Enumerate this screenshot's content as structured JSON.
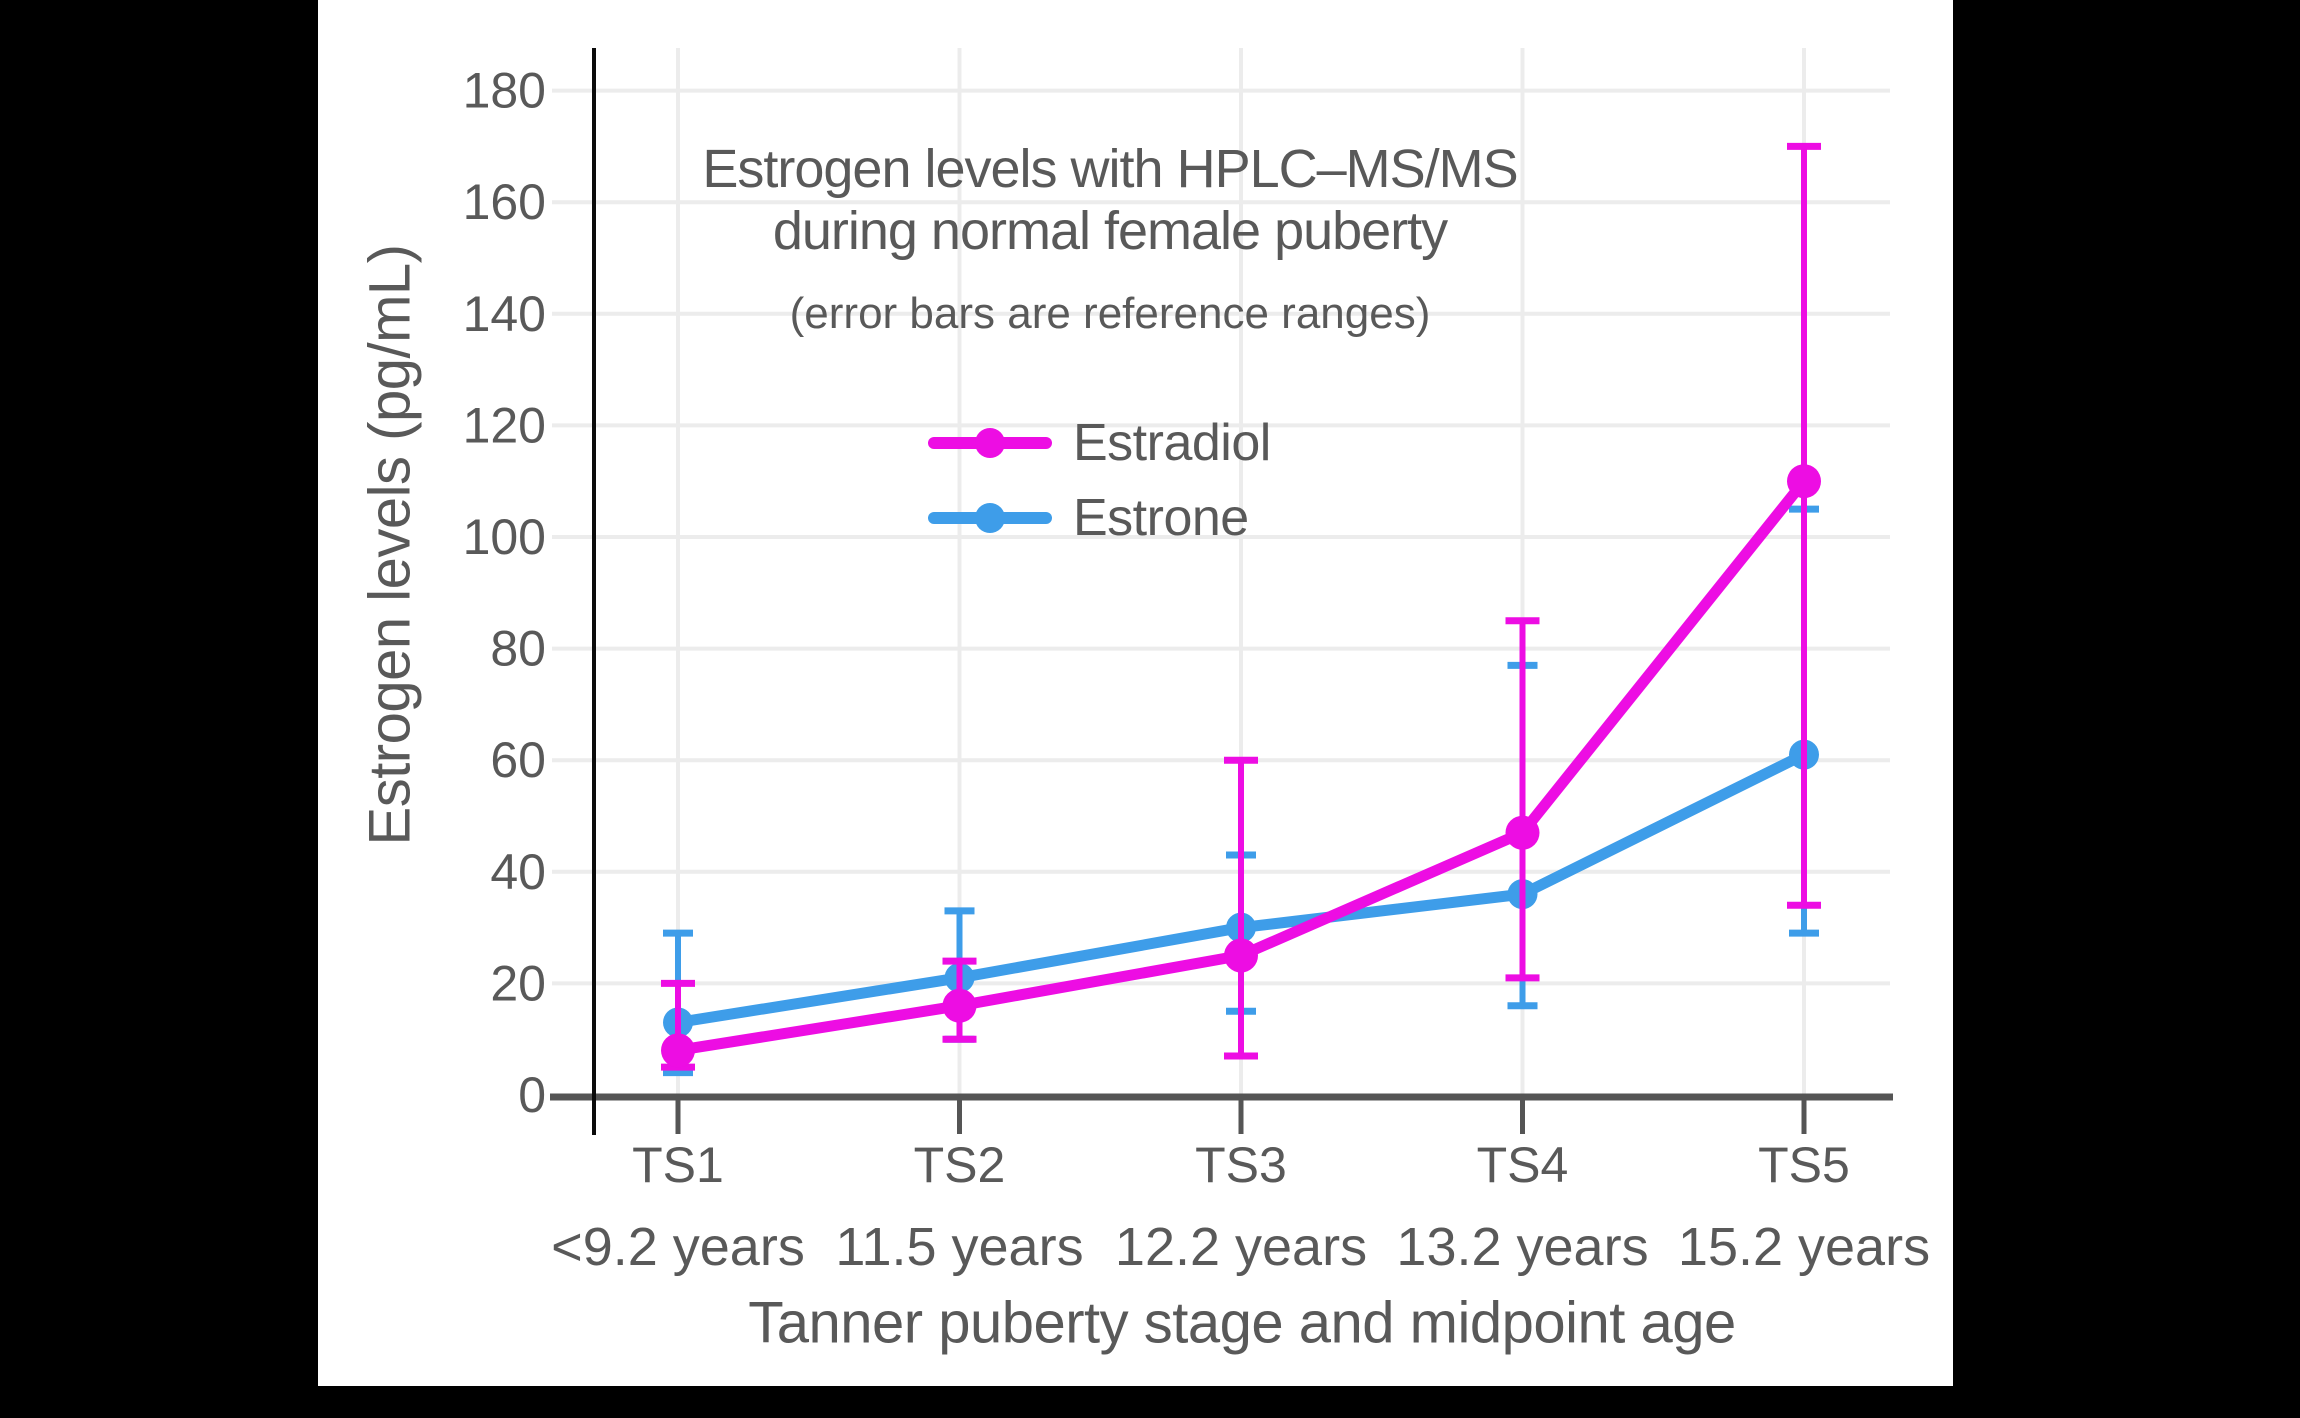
{
  "figure": {
    "background_color": "#000000",
    "panel_color": "#ffffff",
    "text_color": "#595959",
    "gridline_color": "#ececec",
    "axis_color": "#555555"
  },
  "chart_data": {
    "type": "line",
    "title_line1": "Estrogen levels with HPLC–MS/MS",
    "title_line2": "during normal female puberty",
    "subtitle": "(error bars are reference ranges)",
    "xlabel": "Tanner puberty stage and midpoint age",
    "ylabel": "Estrogen levels (pg/mL)",
    "categories": [
      "TS1",
      "TS2",
      "TS3",
      "TS4",
      "TS5"
    ],
    "category_ages": [
      "<9.2 years",
      "11.5 years",
      "12.2 years",
      "13.2 years",
      "15.2 years"
    ],
    "y_ticks": [
      0,
      20,
      40,
      60,
      80,
      100,
      120,
      140,
      160,
      180
    ],
    "ylim": [
      0,
      188
    ],
    "grid": true,
    "legend_position": "upper-center-inside",
    "error_bars": "reference ranges",
    "series": [
      {
        "name": "Estrone",
        "color": "#3E9DE9",
        "values": [
          13,
          21,
          30,
          36,
          61
        ],
        "error_low": [
          4,
          10,
          15,
          16,
          29
        ],
        "error_high": [
          29,
          33,
          43,
          77,
          105
        ]
      },
      {
        "name": "Estradiol",
        "color": "#ED0DE3",
        "values": [
          8,
          16,
          25,
          47,
          110
        ],
        "error_low": [
          5,
          10,
          7,
          21,
          34
        ],
        "error_high": [
          20,
          24,
          60,
          85,
          170
        ]
      }
    ]
  },
  "legend": {
    "items": [
      {
        "label": "Estradiol",
        "color": "#ED0DE3"
      },
      {
        "label": "Estrone",
        "color": "#3E9DE9"
      }
    ]
  }
}
